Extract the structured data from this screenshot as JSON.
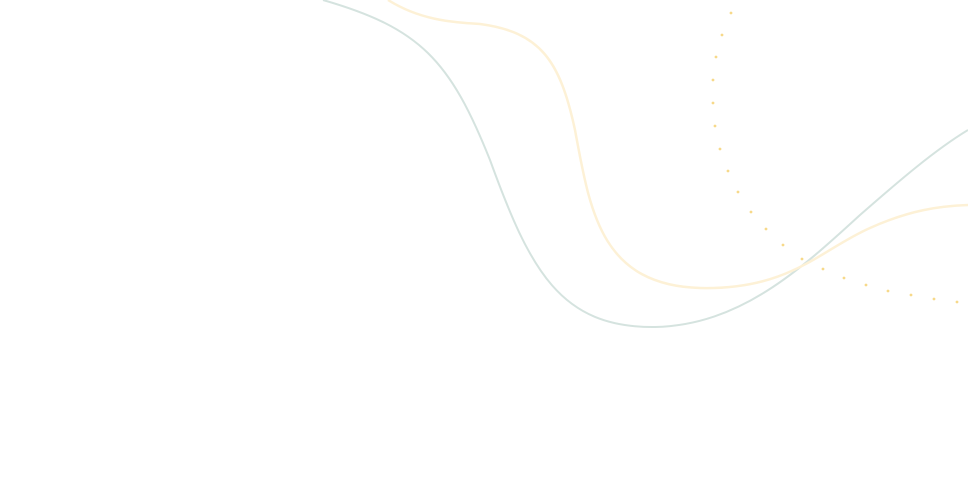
{
  "colors": {
    "background": "#ffffff",
    "teal_curve": "#d5e3df",
    "yellow_curve": "#fdf1d6",
    "dots": "#f7d98a"
  }
}
